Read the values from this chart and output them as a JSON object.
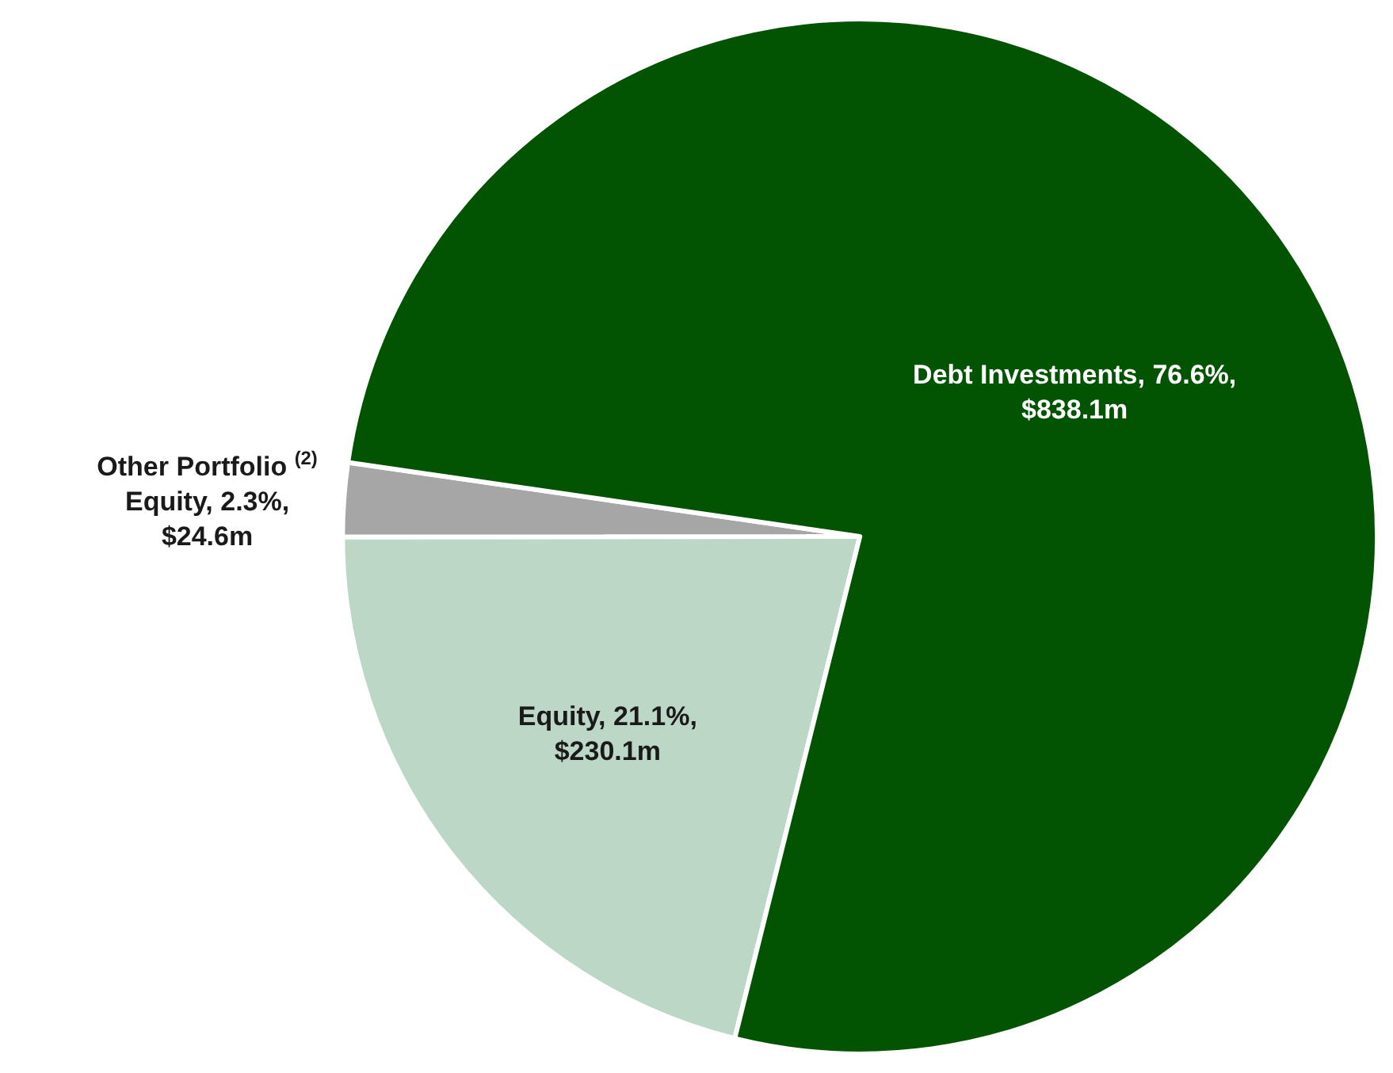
{
  "chart_data": {
    "type": "pie",
    "categories": [
      "Equity",
      "Other Portfolio $^{(2)}$\nEquity",
      "Debt Investments"
    ],
    "values": [
      21.1,
      2.3,
      76.6
    ],
    "value_labels": [
      "21.1%,\n$230.1m",
      "2.3%,\n$24.6m",
      "76.6%,\n$838.1m"
    ],
    "colors": [
      "#bdd7c7",
      "#a6a6a6",
      "#035402"
    ],
    "legend": false
  }
}
